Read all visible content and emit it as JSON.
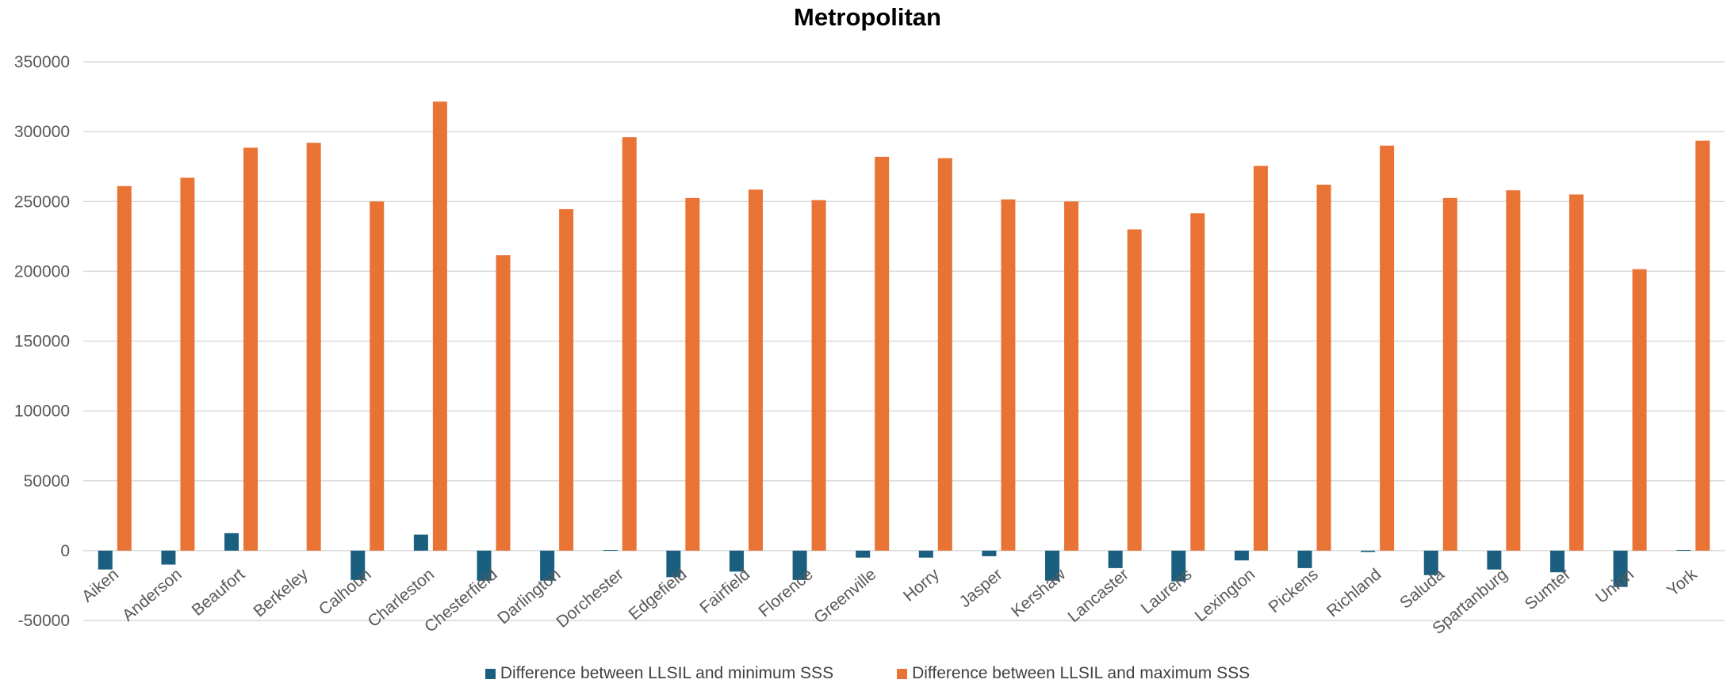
{
  "colors": {
    "series_min": "#1a5f7f",
    "series_max": "#e97335",
    "grid": "#d9d9d9",
    "axis_text": "#595959"
  },
  "chart_data": {
    "type": "bar",
    "title": "Metropolitan",
    "xlabel": "",
    "ylabel": "",
    "ylim": [
      -50000,
      350000
    ],
    "yticks": [
      -50000,
      0,
      50000,
      100000,
      150000,
      200000,
      250000,
      300000,
      350000
    ],
    "grid": true,
    "legend_position": "bottom",
    "categories": [
      "Aiken",
      "Anderson",
      "Beaufort",
      "Berkeley",
      "Calhoun",
      "Charleston",
      "Chesterfield",
      "Darlington",
      "Dorchester",
      "Edgefield",
      "Fairfield",
      "Florence",
      "Greenville",
      "Horry",
      "Jasper",
      "Kershaw",
      "Lancaster",
      "Laurens",
      "Lexington",
      "Pickens",
      "Richland",
      "Saluda",
      "Spartanburg",
      "Sumter",
      "Union",
      "York"
    ],
    "series": [
      {
        "name": "Difference between LLSIL and minimum SSS",
        "color": "#1a5f7f",
        "values": [
          -13500,
          -10000,
          12500,
          0,
          -21000,
          11500,
          -21500,
          -21500,
          500,
          -19000,
          -15000,
          -21000,
          -5000,
          -5000,
          -4000,
          -21500,
          -12500,
          -22000,
          -7000,
          -12500,
          -1000,
          -17500,
          -13500,
          -15500,
          -26000,
          500
        ]
      },
      {
        "name": "Difference between LLSIL and maximum SSS",
        "color": "#e97335",
        "values": [
          261000,
          267000,
          288500,
          292000,
          250000,
          321500,
          211500,
          244500,
          296000,
          252500,
          258500,
          251000,
          282000,
          281000,
          251500,
          250000,
          230000,
          241500,
          275500,
          262000,
          290000,
          252500,
          258000,
          255000,
          201500,
          293500
        ]
      }
    ]
  }
}
